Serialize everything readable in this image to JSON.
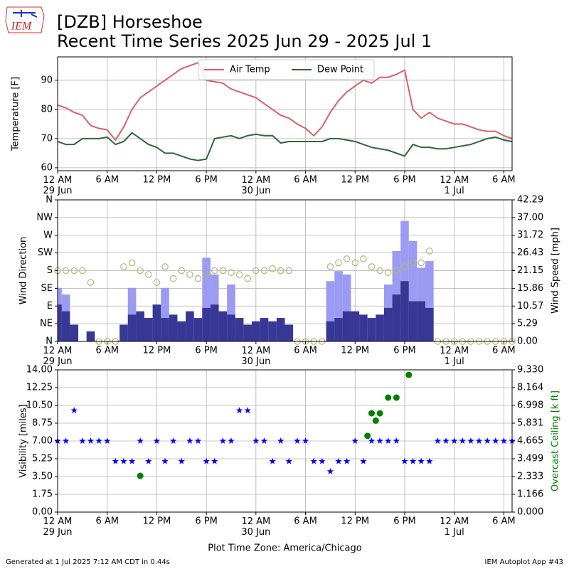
{
  "logo": "IEM",
  "title": "[DZB] Horseshoe",
  "subtitle": "Recent Time Series 2025 Jun 29 - 2025 Jul 1",
  "footer_left": "Generated at 1 Jul 2025 7:12 AM CDT in 0.44s",
  "footer_right": "IEM Autoplot App #43",
  "chart_data": [
    {
      "type": "line",
      "ylabel": "Temperature [F]",
      "x": [
        0,
        1,
        2,
        3,
        4,
        5,
        6,
        7,
        8,
        9,
        10,
        11,
        12,
        13,
        14,
        15,
        16,
        17,
        18,
        19,
        20,
        21,
        22,
        23,
        24,
        25,
        26,
        27,
        28,
        29,
        30,
        31,
        32,
        33,
        34,
        35,
        36,
        37,
        38,
        39,
        40,
        41,
        42,
        43,
        44,
        45,
        46,
        47,
        48,
        49,
        50,
        51,
        52,
        53,
        54,
        55
      ],
      "xlim": [
        0,
        55
      ],
      "xticks": [
        {
          "value": 0,
          "label": "12 AM\n29 Jun"
        },
        {
          "value": 6,
          "label": "6 AM"
        },
        {
          "value": 12,
          "label": "12 PM"
        },
        {
          "value": 18,
          "label": "6 PM"
        },
        {
          "value": 24,
          "label": "12 AM\n30 Jun"
        },
        {
          "value": 30,
          "label": "6 AM"
        },
        {
          "value": 36,
          "label": "12 PM"
        },
        {
          "value": 42,
          "label": "6 PM"
        },
        {
          "value": 48,
          "label": "12 AM\n1 Jul"
        },
        {
          "value": 54,
          "label": "6 AM"
        }
      ],
      "ylim": [
        59,
        98
      ],
      "yticks": [
        60,
        70,
        80,
        90
      ],
      "grid": true,
      "legend": "upper center",
      "series": [
        {
          "name": "Air Temp",
          "color": "#d9606a",
          "style": "line",
          "values": [
            81.5,
            80.5,
            79,
            78,
            74.5,
            73.5,
            73,
            69.5,
            74,
            80,
            84,
            86,
            88,
            90,
            92,
            94,
            95,
            96,
            90,
            89.5,
            89,
            87,
            86,
            85,
            84,
            82,
            80,
            78,
            77,
            75,
            73.5,
            71,
            74,
            79,
            83,
            86,
            88,
            90,
            89,
            91,
            91,
            92,
            93.5,
            80,
            77,
            79,
            77,
            76,
            75,
            75,
            74,
            73,
            72.5,
            72.5,
            71,
            70
          ]
        },
        {
          "name": "Dew Point",
          "color": "#33663a",
          "style": "line",
          "values": [
            69,
            68,
            68,
            70,
            70,
            70,
            70.5,
            68,
            69,
            72,
            70,
            68,
            67,
            65,
            65,
            64,
            63,
            62.5,
            63,
            70,
            70.5,
            71,
            70,
            71,
            71.5,
            71,
            71,
            68.5,
            69,
            69,
            69,
            69,
            69,
            70,
            70,
            69.5,
            69,
            68,
            67,
            66.5,
            66,
            65,
            64,
            68,
            67,
            67,
            66.5,
            66.5,
            67,
            67.5,
            68,
            69,
            70,
            70.5,
            69.5,
            69
          ]
        }
      ]
    },
    {
      "type": "bar",
      "ylabel": "Wind Direction",
      "y2label": "Wind Speed [mph]",
      "x": [
        0,
        1,
        2,
        3,
        4,
        5,
        6,
        7,
        8,
        9,
        10,
        11,
        12,
        13,
        14,
        15,
        16,
        17,
        18,
        19,
        20,
        21,
        22,
        23,
        24,
        25,
        26,
        27,
        28,
        29,
        30,
        31,
        32,
        33,
        34,
        35,
        36,
        37,
        38,
        39,
        40,
        41,
        42,
        43,
        44,
        45,
        46,
        47,
        48,
        49,
        50,
        51,
        52,
        53,
        54,
        55
      ],
      "xlim": [
        0,
        55
      ],
      "xticks": [
        {
          "value": 0,
          "label": "12 AM\n29 Jun"
        },
        {
          "value": 6,
          "label": "6 AM"
        },
        {
          "value": 12,
          "label": "12 PM"
        },
        {
          "value": 18,
          "label": "6 PM"
        },
        {
          "value": 24,
          "label": "12 AM\n30 Jun"
        },
        {
          "value": 30,
          "label": "6 AM"
        },
        {
          "value": 36,
          "label": "12 PM"
        },
        {
          "value": 42,
          "label": "6 PM"
        },
        {
          "value": 48,
          "label": "12 AM\n1 Jul"
        },
        {
          "value": 54,
          "label": "6 AM"
        }
      ],
      "ylim": [
        0,
        360
      ],
      "yticks": [
        {
          "value": 0,
          "label": "N"
        },
        {
          "value": 45,
          "label": "NE"
        },
        {
          "value": 90,
          "label": "E"
        },
        {
          "value": 135,
          "label": "SE"
        },
        {
          "value": 180,
          "label": "S"
        },
        {
          "value": 225,
          "label": "SW"
        },
        {
          "value": 270,
          "label": "W"
        },
        {
          "value": 315,
          "label": "NW"
        },
        {
          "value": 360,
          "label": "N"
        }
      ],
      "y2lim": [
        0,
        42.29
      ],
      "y2ticks": [
        {
          "value": 0,
          "label": "0.00"
        },
        {
          "value": 5.29,
          "label": "5.29"
        },
        {
          "value": 10.57,
          "label": "10.57"
        },
        {
          "value": 15.86,
          "label": "15.86"
        },
        {
          "value": 21.15,
          "label": "21.15"
        },
        {
          "value": 26.43,
          "label": "26.43"
        },
        {
          "value": 31.72,
          "label": "31.72"
        },
        {
          "value": 37,
          "label": "37.00"
        },
        {
          "value": 42.29,
          "label": "42.29"
        }
      ],
      "grid": true,
      "series": [
        {
          "color": "#9b9bf2",
          "style": "bar",
          "axis": "y2",
          "values": [
            16,
            14,
            null,
            null,
            null,
            null,
            null,
            null,
            null,
            16,
            null,
            null,
            null,
            16,
            null,
            null,
            null,
            null,
            25,
            20,
            null,
            17,
            null,
            null,
            null,
            null,
            null,
            null,
            null,
            null,
            null,
            null,
            null,
            18,
            21,
            20,
            null,
            null,
            null,
            null,
            17,
            27,
            36,
            30,
            22,
            24,
            null,
            null,
            null,
            null,
            null,
            null,
            null,
            null,
            null,
            null
          ]
        },
        {
          "color": "#373896",
          "style": "bar",
          "axis": "y2",
          "values": [
            11,
            9,
            5,
            0,
            3,
            0,
            0,
            0,
            5,
            8,
            9,
            7,
            11,
            7,
            8,
            6,
            9,
            7,
            10,
            11,
            9,
            8,
            7,
            5,
            6,
            7,
            6,
            7,
            5,
            0,
            0,
            0,
            0,
            6,
            7,
            9,
            9,
            8,
            7,
            8,
            10,
            14,
            18,
            12,
            12,
            10,
            0,
            0,
            0,
            0,
            0,
            0,
            0,
            0,
            0,
            0
          ]
        },
        {
          "color": "#b5b57a",
          "style": "circle",
          "axis": "y",
          "values": [
            180,
            180,
            180,
            180,
            150,
            0,
            0,
            0,
            190,
            200,
            180,
            170,
            150,
            190,
            160,
            180,
            170,
            160,
            170,
            180,
            180,
            175,
            170,
            160,
            180,
            180,
            185,
            180,
            180,
            0,
            0,
            0,
            0,
            190,
            200,
            210,
            200,
            210,
            190,
            180,
            175,
            180,
            190,
            200,
            200,
            230,
            0,
            0,
            0,
            0,
            0,
            0,
            0,
            0,
            0,
            0
          ]
        }
      ]
    },
    {
      "type": "scatter",
      "ylabel": "Visibility [miles]",
      "y2label": "Overcast Ceiling [k ft]",
      "y2label_color": "#008000",
      "xlabel": "Plot Time Zone: America/Chicago",
      "x": [
        0,
        1,
        2,
        3,
        4,
        5,
        6,
        7,
        8,
        9,
        10,
        11,
        12,
        13,
        14,
        15,
        16,
        17,
        18,
        19,
        20,
        21,
        22,
        23,
        24,
        25,
        26,
        27,
        28,
        29,
        30,
        31,
        32,
        33,
        34,
        35,
        36,
        37,
        38,
        39,
        40,
        41,
        42,
        43,
        44,
        45,
        46,
        47,
        48,
        49,
        50,
        51,
        52,
        53,
        54,
        55
      ],
      "xlim": [
        0,
        55
      ],
      "xticks": [
        {
          "value": 0,
          "label": "12 AM\n29 Jun"
        },
        {
          "value": 6,
          "label": "6 AM"
        },
        {
          "value": 12,
          "label": "12 PM"
        },
        {
          "value": 18,
          "label": "6 PM"
        },
        {
          "value": 24,
          "label": "12 AM\n30 Jun"
        },
        {
          "value": 30,
          "label": "6 AM"
        },
        {
          "value": 36,
          "label": "12 PM"
        },
        {
          "value": 42,
          "label": "6 PM"
        },
        {
          "value": 48,
          "label": "12 AM\n1 Jul"
        },
        {
          "value": 54,
          "label": "6 AM"
        }
      ],
      "ylim": [
        0,
        14
      ],
      "yticks": [
        {
          "value": 0,
          "label": "0.00"
        },
        {
          "value": 1.75,
          "label": "1.75"
        },
        {
          "value": 3.5,
          "label": "3.50"
        },
        {
          "value": 5.25,
          "label": "5.25"
        },
        {
          "value": 7,
          "label": "7.00"
        },
        {
          "value": 8.75,
          "label": "8.75"
        },
        {
          "value": 10.5,
          "label": "10.50"
        },
        {
          "value": 12.25,
          "label": "12.25"
        },
        {
          "value": 14,
          "label": "14.00"
        }
      ],
      "y2lim": [
        0,
        9.33
      ],
      "y2ticks": [
        {
          "value": 0,
          "label": "0.000"
        },
        {
          "value": 1.166,
          "label": "1.166"
        },
        {
          "value": 2.333,
          "label": "2.333"
        },
        {
          "value": 3.499,
          "label": "3.499"
        },
        {
          "value": 4.665,
          "label": "4.665"
        },
        {
          "value": 5.831,
          "label": "5.831"
        },
        {
          "value": 6.998,
          "label": "6.998"
        },
        {
          "value": 8.164,
          "label": "8.164"
        },
        {
          "value": 9.33,
          "label": "9.330"
        }
      ],
      "grid": true,
      "series": [
        {
          "color": "#0000ff",
          "style": "star",
          "axis": "y",
          "values": [
            7,
            7,
            10,
            7,
            7,
            7,
            7,
            5,
            5,
            5,
            7,
            5,
            7,
            5,
            7,
            5,
            7,
            7,
            5,
            5,
            7,
            7,
            10,
            10,
            7,
            7,
            5,
            7,
            5,
            7,
            7,
            5,
            5,
            4,
            5,
            5,
            7,
            5,
            7,
            7,
            7,
            7,
            5,
            5,
            5,
            5,
            7,
            7,
            7,
            7,
            7,
            7,
            7,
            7,
            7,
            7
          ]
        },
        {
          "color": "#008000",
          "style": "dot",
          "axis": "y2",
          "x": [
            10,
            37.5,
            38,
            38.5,
            39,
            40,
            41,
            42.5
          ],
          "values": [
            2.38,
            5.0,
            6.48,
            6.0,
            6.48,
            7.51,
            7.51,
            9.0
          ]
        }
      ]
    }
  ]
}
